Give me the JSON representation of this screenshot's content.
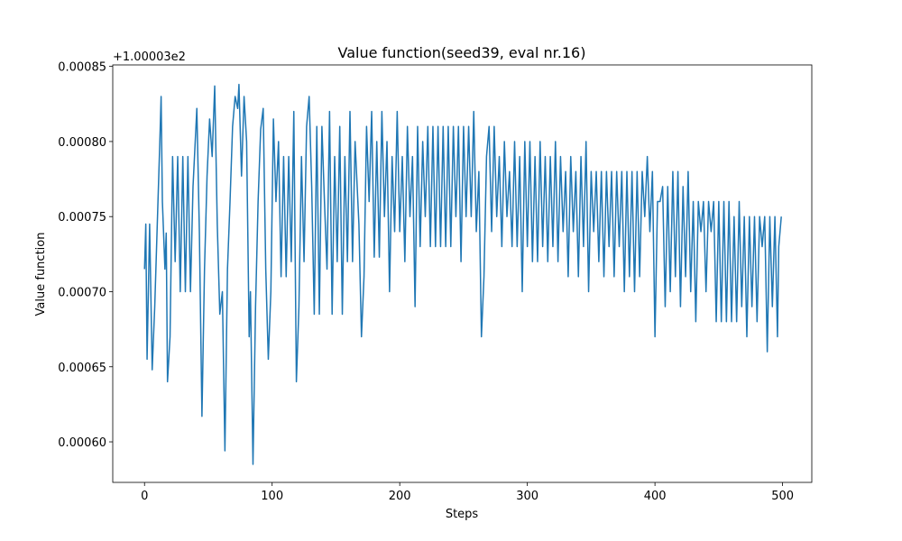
{
  "chart_data": {
    "type": "line",
    "title": "Value function(seed39, eval nr.16)",
    "x_label": "Steps",
    "y_label": "Value function",
    "y_offset_text": "+1.00003e2",
    "xlim": [
      -24.9,
      522.9
    ],
    "xticks": [
      0,
      100,
      200,
      300,
      400,
      500
    ],
    "ylim": [
      0.000573,
      0.000851
    ],
    "yticks": [
      {
        "value": 0.0006,
        "label": "0.00060"
      },
      {
        "value": 0.00065,
        "label": "0.00065"
      },
      {
        "value": 0.0007,
        "label": "0.00070"
      },
      {
        "value": 0.00075,
        "label": "0.00075"
      },
      {
        "value": 0.0008,
        "label": "0.00080"
      },
      {
        "value": 0.00085,
        "label": "0.00085"
      }
    ],
    "x": [
      0,
      1,
      2,
      4,
      6,
      8,
      10,
      12,
      13,
      14,
      16,
      17,
      18,
      20,
      22,
      24,
      26,
      28,
      30,
      32,
      34,
      36,
      38,
      41,
      43,
      45,
      47,
      49,
      51,
      53,
      55,
      57,
      59,
      61,
      63,
      65,
      67,
      69,
      71,
      73,
      74,
      76,
      78,
      80,
      82,
      83,
      85,
      87,
      89,
      91,
      93,
      95,
      97,
      99,
      101,
      103,
      105,
      107,
      109,
      111,
      113,
      115,
      117,
      119,
      121,
      123,
      125,
      127,
      129,
      131,
      133,
      135,
      137,
      139,
      141,
      143,
      145,
      147,
      149,
      151,
      153,
      155,
      157,
      159,
      161,
      163,
      165,
      168,
      170,
      172,
      174,
      176,
      178,
      180,
      182,
      184,
      186,
      188,
      190,
      192,
      194,
      196,
      198,
      200,
      202,
      204,
      206,
      208,
      210,
      212,
      214,
      216,
      218,
      220,
      222,
      224,
      226,
      228,
      230,
      232,
      234,
      236,
      238,
      240,
      242,
      244,
      246,
      248,
      250,
      252,
      254,
      256,
      258,
      260,
      262,
      264,
      266,
      268,
      270,
      272,
      274,
      276,
      278,
      280,
      282,
      284,
      286,
      288,
      290,
      292,
      294,
      296,
      298,
      300,
      302,
      304,
      306,
      308,
      310,
      312,
      314,
      316,
      318,
      320,
      322,
      324,
      326,
      328,
      330,
      332,
      334,
      336,
      338,
      340,
      342,
      344,
      346,
      348,
      350,
      352,
      354,
      356,
      358,
      360,
      362,
      364,
      366,
      368,
      370,
      372,
      374,
      376,
      378,
      380,
      382,
      384,
      386,
      388,
      390,
      392,
      394,
      396,
      398,
      400,
      402,
      404,
      406,
      408,
      410,
      412,
      414,
      416,
      418,
      420,
      422,
      424,
      426,
      428,
      430,
      432,
      434,
      436,
      438,
      440,
      442,
      444,
      446,
      448,
      450,
      452,
      454,
      456,
      458,
      460,
      462,
      464,
      466,
      468,
      470,
      472,
      474,
      476,
      478,
      480,
      482,
      484,
      486,
      488,
      490,
      492,
      494,
      496,
      497,
      499
    ],
    "series": [
      {
        "name": "Value function",
        "color": "#1f77b4",
        "values": [
          0.000715,
          0.000745,
          0.000655,
          0.000745,
          0.000648,
          0.00069,
          0.000745,
          0.0008,
          0.00083,
          0.00076,
          0.000715,
          0.000739,
          0.00064,
          0.00067,
          0.00079,
          0.00072,
          0.00079,
          0.0007,
          0.00079,
          0.0007,
          0.00079,
          0.0007,
          0.00077,
          0.000822,
          0.000739,
          0.000617,
          0.000715,
          0.000777,
          0.000815,
          0.00079,
          0.000837,
          0.000745,
          0.000685,
          0.0007,
          0.000594,
          0.000715,
          0.00076,
          0.00081,
          0.00083,
          0.000822,
          0.000838,
          0.000777,
          0.00083,
          0.0008,
          0.00067,
          0.0007,
          0.000585,
          0.00069,
          0.00076,
          0.000808,
          0.000822,
          0.000715,
          0.000655,
          0.0007,
          0.000815,
          0.00076,
          0.0008,
          0.00071,
          0.00079,
          0.00071,
          0.00079,
          0.00072,
          0.00082,
          0.00064,
          0.00069,
          0.00079,
          0.00072,
          0.00081,
          0.00083,
          0.00077,
          0.000685,
          0.00081,
          0.000685,
          0.00081,
          0.00076,
          0.000715,
          0.00082,
          0.000685,
          0.00079,
          0.00072,
          0.00081,
          0.000685,
          0.00079,
          0.00072,
          0.00082,
          0.00072,
          0.0008,
          0.000745,
          0.00067,
          0.00071,
          0.00081,
          0.00076,
          0.00082,
          0.000723,
          0.0008,
          0.000723,
          0.00082,
          0.00075,
          0.0008,
          0.0007,
          0.00079,
          0.00074,
          0.00082,
          0.00074,
          0.00079,
          0.00072,
          0.00081,
          0.00075,
          0.00079,
          0.00069,
          0.00081,
          0.00073,
          0.0008,
          0.00075,
          0.00081,
          0.00073,
          0.00081,
          0.00073,
          0.00081,
          0.00073,
          0.00081,
          0.00073,
          0.00081,
          0.00073,
          0.00081,
          0.00075,
          0.00081,
          0.00072,
          0.00081,
          0.00075,
          0.00081,
          0.00075,
          0.00082,
          0.00074,
          0.00078,
          0.00067,
          0.00071,
          0.00079,
          0.00081,
          0.00074,
          0.00081,
          0.00075,
          0.00079,
          0.00073,
          0.0008,
          0.00075,
          0.00078,
          0.00073,
          0.0008,
          0.00073,
          0.00079,
          0.0007,
          0.0008,
          0.00073,
          0.0008,
          0.00072,
          0.00079,
          0.00072,
          0.0008,
          0.00073,
          0.00079,
          0.00072,
          0.00079,
          0.00073,
          0.0008,
          0.00072,
          0.00079,
          0.00074,
          0.00078,
          0.00071,
          0.00079,
          0.00074,
          0.00078,
          0.00071,
          0.00079,
          0.00073,
          0.0008,
          0.0007,
          0.00078,
          0.00074,
          0.00078,
          0.00072,
          0.00078,
          0.00071,
          0.00078,
          0.00073,
          0.00078,
          0.00071,
          0.00078,
          0.00073,
          0.00078,
          0.0007,
          0.00078,
          0.00071,
          0.00078,
          0.0007,
          0.00078,
          0.00071,
          0.00078,
          0.00075,
          0.00079,
          0.00074,
          0.00078,
          0.00067,
          0.00076,
          0.00076,
          0.00077,
          0.00069,
          0.00077,
          0.0007,
          0.00078,
          0.00071,
          0.00078,
          0.00069,
          0.00077,
          0.00071,
          0.00078,
          0.0007,
          0.00076,
          0.00068,
          0.00076,
          0.00074,
          0.00076,
          0.0007,
          0.00076,
          0.00074,
          0.00076,
          0.00068,
          0.00076,
          0.00068,
          0.00076,
          0.00068,
          0.00076,
          0.00068,
          0.00075,
          0.00068,
          0.00076,
          0.00069,
          0.00075,
          0.00067,
          0.00075,
          0.00069,
          0.00075,
          0.00068,
          0.00075,
          0.00073,
          0.00075,
          0.00066,
          0.00075,
          0.00069,
          0.00075,
          0.00067,
          0.00073,
          0.00075
        ]
      }
    ]
  }
}
